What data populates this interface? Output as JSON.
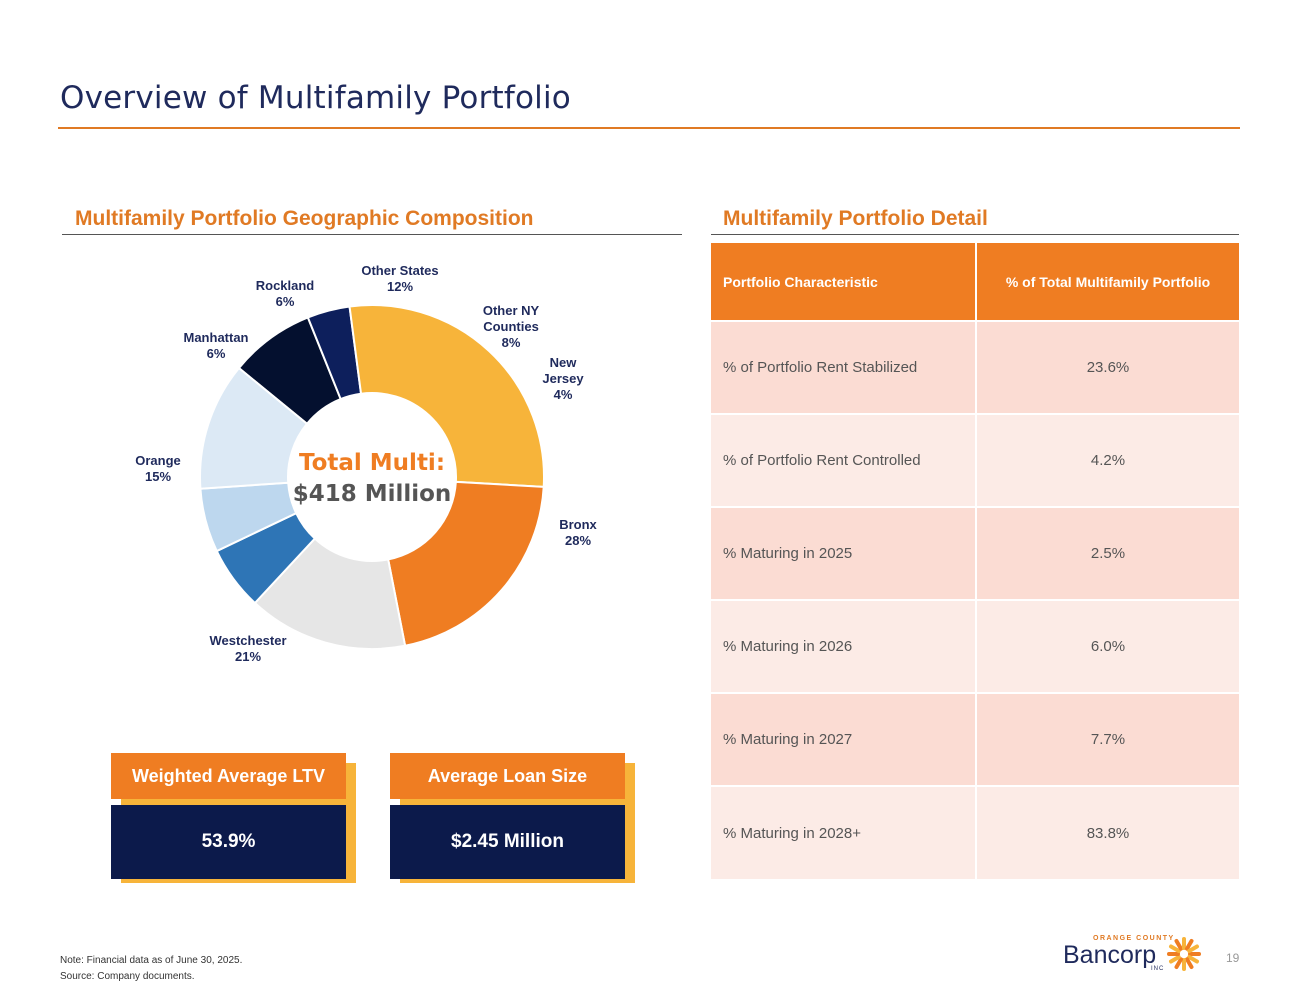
{
  "page": {
    "title": "Overview of Multifamily Portfolio",
    "page_number": "19"
  },
  "left_section": {
    "heading": "Multifamily Portfolio Geographic Composition"
  },
  "right_section": {
    "heading": "Multifamily Portfolio Detail"
  },
  "chart_data": {
    "type": "pie",
    "title": "Multifamily Portfolio Geographic Composition",
    "center_label_1": "Total Multi:",
    "center_label_2": "$418 Million",
    "categories": [
      "Other NY Counties",
      "New Jersey",
      "Bronx",
      "Westchester",
      "Orange",
      "Manhattan",
      "Rockland",
      "Other States"
    ],
    "values": [
      8,
      4,
      28,
      21,
      15,
      6,
      6,
      12
    ],
    "units": "%",
    "colors": [
      "#04102f",
      "#0d1f5c",
      "#f7b43a",
      "#ef7d22",
      "#e6e6e6",
      "#2e75b6",
      "#bdd7ee",
      "#dce9f5"
    ],
    "labels": [
      {
        "name_lines": [
          "Other NY",
          "Counties"
        ],
        "pct": "8%"
      },
      {
        "name_lines": [
          "New",
          "Jersey"
        ],
        "pct": "4%"
      },
      {
        "name_lines": [
          "Bronx"
        ],
        "pct": "28%"
      },
      {
        "name_lines": [
          "Westchester"
        ],
        "pct": "21%"
      },
      {
        "name_lines": [
          "Orange"
        ],
        "pct": "15%"
      },
      {
        "name_lines": [
          "Manhattan"
        ],
        "pct": "6%"
      },
      {
        "name_lines": [
          "Rockland"
        ],
        "pct": "6%"
      },
      {
        "name_lines": [
          "Other States"
        ],
        "pct": "12%"
      }
    ]
  },
  "kpis": {
    "ltv": {
      "label": "Weighted Average LTV",
      "value": "53.9%"
    },
    "loan_size": {
      "label": "Average Loan Size",
      "value": "$2.45 Million"
    }
  },
  "detail_table": {
    "headers": [
      "Portfolio Characteristic",
      "% of Total Multifamily Portfolio"
    ],
    "rows": [
      {
        "label": "% of Portfolio Rent Stabilized",
        "value": "23.6%"
      },
      {
        "label": "% of Portfolio Rent Controlled",
        "value": "4.2%"
      },
      {
        "label": "% Maturing in 2025",
        "value": "2.5%"
      },
      {
        "label": "% Maturing in 2026",
        "value": "6.0%"
      },
      {
        "label": "% Maturing in 2027",
        "value": "7.7%"
      },
      {
        "label": "% Maturing in 2028+",
        "value": "83.8%"
      }
    ]
  },
  "footnotes": {
    "note": "Note: Financial data as of June 30, 2025.",
    "source": "Source: Company documents."
  },
  "logo": {
    "small_text": "ORANGE COUNTY",
    "word": "Bancorp",
    "inc": "INC",
    "accent_color": "#ef7d22"
  }
}
